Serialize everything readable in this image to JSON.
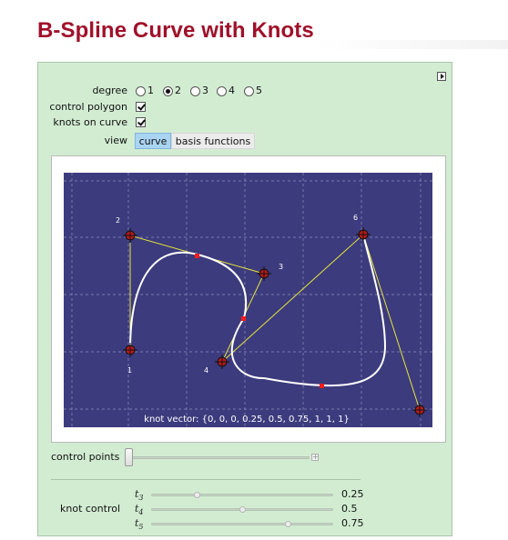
{
  "title": "B-Spline Curve with Knots",
  "controls": {
    "degree_label": "degree",
    "degree_options": [
      "1",
      "2",
      "3",
      "4",
      "5"
    ],
    "degree_selected": "2",
    "control_polygon_label": "control polygon",
    "control_polygon_checked": true,
    "knots_on_curve_label": "knots on curve",
    "knots_on_curve_checked": true,
    "view_label": "view",
    "view_options": [
      "curve",
      "basis functions"
    ],
    "view_selected": "curve"
  },
  "plot": {
    "background": "#3c3b7d",
    "curve_color": "#ffffff",
    "polygon_color": "#e5e53c",
    "knot_color": "#ff1a1a",
    "point_labels": [
      "1",
      "2",
      "3",
      "4",
      "6"
    ],
    "knot_vector_text": "knot vector: {0, 0, 0, 0.25, 0.5, 0.75, 1, 1, 1}"
  },
  "control_points_slider": {
    "label": "control points"
  },
  "knot_control": {
    "label": "knot control",
    "knots": [
      {
        "symbol": "t",
        "sub": "3",
        "value": "0.25",
        "fraction": 0.25
      },
      {
        "symbol": "t",
        "sub": "4",
        "value": "0.5",
        "fraction": 0.5
      },
      {
        "symbol": "t",
        "sub": "5",
        "value": "0.75",
        "fraction": 0.75
      }
    ]
  }
}
